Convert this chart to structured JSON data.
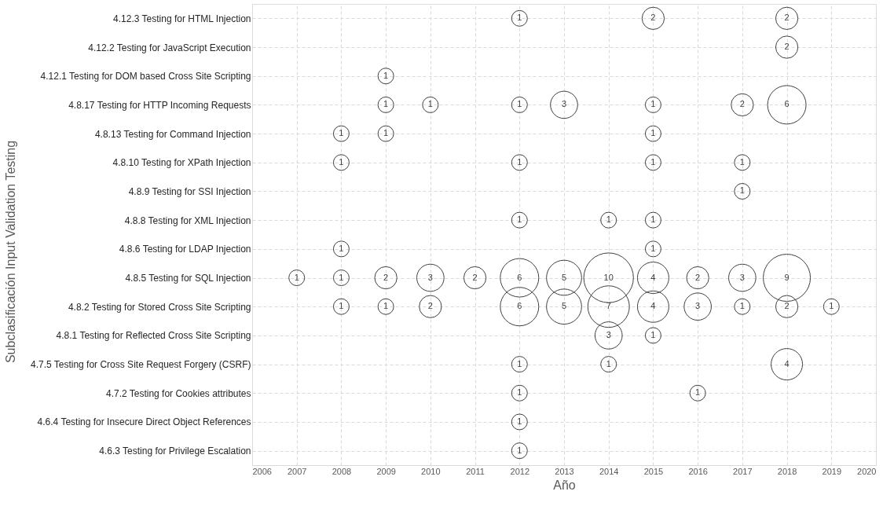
{
  "chart_data": {
    "type": "bubble",
    "orientation": "horizontal",
    "xlabel": "Año",
    "ylabel": "Subclasificación Input Validation Testing",
    "xlim": [
      2006,
      2020
    ],
    "xticks": [
      2006,
      2007,
      2008,
      2009,
      2010,
      2011,
      2012,
      2013,
      2014,
      2015,
      2016,
      2017,
      2018,
      2019,
      2020
    ],
    "categories": [
      "4.12.3 Testing for HTML Injection",
      "4.12.2 Testing for JavaScript Execution",
      "4.12.1 Testing for DOM based Cross Site Scripting",
      "4.8.17 Testing for HTTP Incoming Requests",
      "4.8.13 Testing for Command Injection",
      "4.8.10 Testing for XPath Injection",
      "4.8.9 Testing for SSI Injection",
      "4.8.8 Testing for XML Injection",
      "4.8.6 Testing for LDAP Injection",
      "4.8.5 Testing for SQL Injection",
      "4.8.2 Testing for Stored Cross Site Scripting",
      "4.8.1 Testing for Reflected Cross Site Scripting",
      "4.7.5 Testing for Cross Site Request Forgery (CSRF)",
      "4.7.2 Testing for Cookies attributes",
      "4.6.4 Testing for Insecure Direct Object References",
      "4.6.3 Testing for Privilege Escalation"
    ],
    "grid": true,
    "line_style": "dashed",
    "series": [
      {
        "color": "#404040",
        "values": [
          null,
          null,
          null,
          null,
          null,
          null,
          null,
          null,
          null,
          2007,
          null,
          null,
          null,
          null,
          null,
          null
        ],
        "sizes": [
          null,
          null,
          null,
          null,
          null,
          null,
          null,
          null,
          null,
          1,
          null,
          null,
          null,
          null,
          null,
          null
        ],
        "value_labels": [
          null,
          null,
          null,
          null,
          null,
          null,
          null,
          null,
          null,
          "1",
          null,
          null,
          null,
          null,
          null,
          null
        ]
      },
      {
        "color": "#404040",
        "values": [
          null,
          null,
          null,
          null,
          2008,
          2008,
          null,
          null,
          2008,
          2008,
          2008,
          null,
          null,
          null,
          null,
          null
        ],
        "sizes": [
          null,
          null,
          null,
          null,
          1,
          1,
          null,
          null,
          1,
          1,
          1,
          null,
          null,
          null,
          null,
          null
        ],
        "value_labels": [
          null,
          null,
          null,
          null,
          "1",
          "1",
          null,
          null,
          "1",
          "1",
          "1",
          null,
          null,
          null,
          null,
          null
        ]
      },
      {
        "color": "#404040",
        "values": [
          null,
          null,
          2009,
          2009,
          2009,
          null,
          null,
          null,
          null,
          2009,
          2009,
          null,
          null,
          null,
          null,
          null
        ],
        "sizes": [
          null,
          null,
          1,
          1,
          1,
          null,
          null,
          null,
          null,
          2,
          1,
          null,
          null,
          null,
          null,
          null
        ],
        "value_labels": [
          null,
          null,
          "1",
          "1",
          "1",
          null,
          null,
          null,
          null,
          "2",
          "1",
          null,
          null,
          null,
          null,
          null
        ]
      },
      {
        "color": "#404040",
        "values": [
          null,
          null,
          null,
          2010,
          null,
          null,
          null,
          null,
          null,
          2010,
          2010,
          null,
          null,
          null,
          null,
          null
        ],
        "sizes": [
          null,
          null,
          null,
          1,
          null,
          null,
          null,
          null,
          null,
          3,
          2,
          null,
          null,
          null,
          null,
          null
        ],
        "value_labels": [
          null,
          null,
          null,
          "1",
          null,
          null,
          null,
          null,
          null,
          "3",
          "2",
          null,
          null,
          null,
          null,
          null
        ]
      },
      {
        "color": "#404040",
        "values": [
          null,
          null,
          null,
          null,
          null,
          null,
          null,
          null,
          null,
          2011,
          null,
          null,
          null,
          null,
          null,
          null
        ],
        "sizes": [
          null,
          null,
          null,
          null,
          null,
          null,
          null,
          null,
          null,
          2,
          null,
          null,
          null,
          null,
          null,
          null
        ],
        "value_labels": [
          null,
          null,
          null,
          null,
          null,
          null,
          null,
          null,
          null,
          "2",
          null,
          null,
          null,
          null,
          null,
          null
        ]
      },
      {
        "color": "#404040",
        "values": [
          2012,
          null,
          null,
          2012,
          null,
          2012,
          null,
          2012,
          null,
          2012,
          2012,
          null,
          2012,
          2012,
          2012,
          2012
        ],
        "sizes": [
          1,
          null,
          null,
          1,
          null,
          1,
          null,
          1,
          null,
          6,
          6,
          null,
          1,
          1,
          1,
          1
        ],
        "value_labels": [
          "1",
          null,
          null,
          "1",
          null,
          "1",
          null,
          "1",
          null,
          "6",
          "6",
          null,
          "1",
          "1",
          "1",
          "1"
        ]
      },
      {
        "color": "#404040",
        "values": [
          null,
          null,
          null,
          2013,
          null,
          null,
          null,
          null,
          null,
          2013,
          2013,
          null,
          null,
          null,
          null,
          null
        ],
        "sizes": [
          null,
          null,
          null,
          3,
          null,
          null,
          null,
          null,
          null,
          5,
          5,
          null,
          null,
          null,
          null,
          null
        ],
        "value_labels": [
          null,
          null,
          null,
          "3",
          null,
          null,
          null,
          null,
          null,
          "5",
          "5",
          null,
          null,
          null,
          null,
          null
        ]
      },
      {
        "color": "#404040",
        "values": [
          null,
          null,
          null,
          null,
          null,
          null,
          null,
          2014,
          null,
          2014,
          2014,
          2014,
          2014,
          null,
          null,
          null
        ],
        "sizes": [
          null,
          null,
          null,
          null,
          null,
          null,
          null,
          1,
          null,
          10,
          7,
          3,
          1,
          null,
          null,
          null
        ],
        "value_labels": [
          null,
          null,
          null,
          null,
          null,
          null,
          null,
          "1",
          null,
          "10",
          "7",
          "3",
          "1",
          null,
          null,
          null
        ]
      },
      {
        "color": "#404040",
        "values": [
          2015,
          null,
          null,
          2015,
          2015,
          2015,
          null,
          2015,
          2015,
          2015,
          2015,
          2015,
          null,
          null,
          null,
          null
        ],
        "sizes": [
          2,
          null,
          null,
          1,
          1,
          1,
          null,
          1,
          1,
          4,
          4,
          1,
          null,
          null,
          null,
          null
        ],
        "value_labels": [
          "2",
          null,
          null,
          "1",
          "1",
          "1",
          null,
          "1",
          "1",
          "4",
          "4",
          "1",
          null,
          null,
          null,
          null
        ]
      },
      {
        "color": "#404040",
        "values": [
          null,
          null,
          null,
          null,
          null,
          null,
          null,
          null,
          null,
          2016,
          2016,
          null,
          null,
          2016,
          null,
          null
        ],
        "sizes": [
          null,
          null,
          null,
          null,
          null,
          null,
          null,
          null,
          null,
          2,
          3,
          null,
          null,
          1,
          null,
          null
        ],
        "value_labels": [
          null,
          null,
          null,
          null,
          null,
          null,
          null,
          null,
          null,
          "2",
          "3",
          null,
          null,
          "1",
          null,
          null
        ]
      },
      {
        "color": "#404040",
        "values": [
          null,
          null,
          null,
          2017,
          null,
          2017,
          2017,
          null,
          null,
          2017,
          2017,
          null,
          null,
          null,
          null,
          null
        ],
        "sizes": [
          null,
          null,
          null,
          2,
          null,
          1,
          1,
          null,
          null,
          3,
          1,
          null,
          null,
          null,
          null,
          null
        ],
        "value_labels": [
          null,
          null,
          null,
          "2",
          null,
          "1",
          "1",
          null,
          null,
          "3",
          "1",
          null,
          null,
          null,
          null,
          null
        ]
      },
      {
        "color": "#404040",
        "values": [
          2018,
          2018,
          null,
          2018,
          null,
          null,
          null,
          null,
          null,
          2018,
          2018,
          null,
          2018,
          null,
          null,
          null
        ],
        "sizes": [
          2,
          2,
          null,
          6,
          null,
          null,
          null,
          null,
          null,
          9,
          2,
          null,
          4,
          null,
          null,
          null
        ],
        "value_labels": [
          "2",
          "2",
          null,
          "6",
          null,
          null,
          null,
          null,
          null,
          "9",
          "2",
          null,
          "4",
          null,
          null,
          null
        ]
      },
      {
        "color": "#404040",
        "values": [
          null,
          null,
          null,
          null,
          null,
          null,
          null,
          null,
          null,
          null,
          2019,
          null,
          null,
          null,
          null,
          null
        ],
        "sizes": [
          null,
          null,
          null,
          null,
          null,
          null,
          null,
          null,
          null,
          null,
          1,
          null,
          null,
          null,
          null,
          null
        ],
        "value_labels": [
          null,
          null,
          null,
          null,
          null,
          null,
          null,
          null,
          null,
          null,
          "1",
          null,
          null,
          null,
          null,
          null
        ]
      }
    ]
  }
}
